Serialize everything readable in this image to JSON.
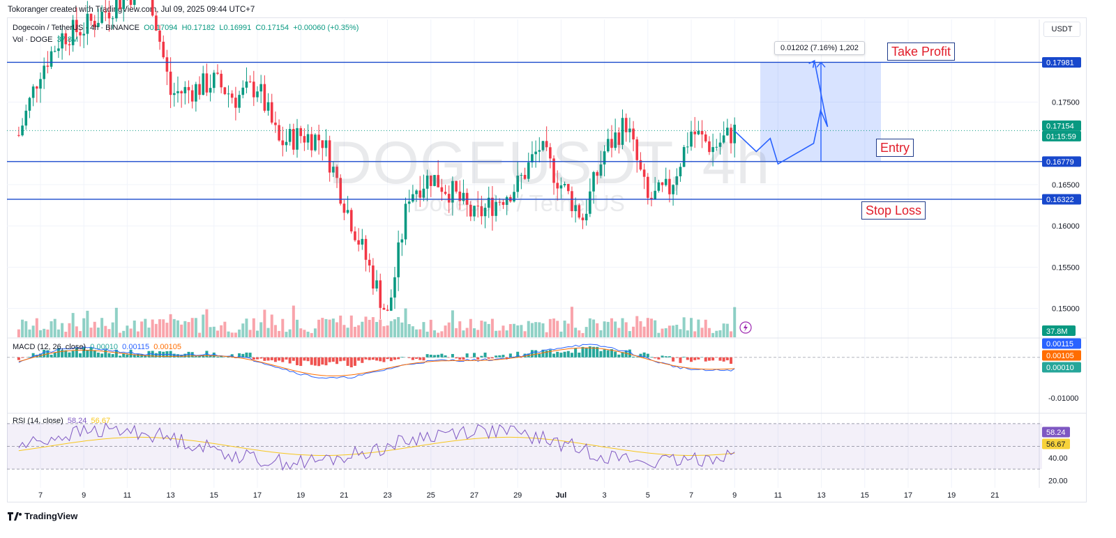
{
  "header": {
    "text": "Tokoranger created with TradingView.com, Jul 09, 2025 09:44 UTC+7"
  },
  "legend": {
    "symbol": "Dogecoin / TetherUS · 4h · BINANCE",
    "o": "O0.17094",
    "h": "H0.17182",
    "l": "L0.16991",
    "c": "C0.17154",
    "chg": "+0.00060 (+0.35%)",
    "vol_label": "Vol · DOGE",
    "vol_value": "37.8M",
    "macd_label": "MACD (12, 26, close)",
    "macd_hist": "0.00010",
    "macd_line": "0.00115",
    "macd_signal": "0.00105",
    "rsi_label": "RSI (14, close)",
    "rsi_value": "58.24",
    "rsi_ma": "56.67"
  },
  "currency": "USDT",
  "watermark": {
    "symbol": "DOGEUSDT, 4h",
    "name": "Dogecoin / TetherUS"
  },
  "annotations": {
    "take_profit": "Take Profit",
    "entry": "Entry",
    "stop_loss": "Stop Loss",
    "measure": "0.01202 (7.16%) 1,202"
  },
  "price_scale": [
    "0.17500",
    "0.16500",
    "0.16000",
    "0.15500",
    "0.15000"
  ],
  "price_badges": [
    {
      "text": "0.17981",
      "color": "#1848cc"
    },
    {
      "text": "0.17154",
      "color": "#089981"
    },
    {
      "text": "01:15:59",
      "color": "#089981"
    },
    {
      "text": "0.16779",
      "color": "#1848cc"
    },
    {
      "text": "0.16322",
      "color": "#1848cc"
    }
  ],
  "vol_badge": {
    "text": "37.8M",
    "color": "#089981"
  },
  "macd_scale": [
    "-0.01000"
  ],
  "macd_badges": [
    {
      "text": "0.00115",
      "color": "#2962ff"
    },
    {
      "text": "0.00105",
      "color": "#ff6d00"
    },
    {
      "text": "0.00010",
      "color": "#26a69a"
    }
  ],
  "rsi_scale": [
    "40.00",
    "20.00"
  ],
  "rsi_badges": [
    {
      "text": "58.24",
      "color": "#7e57c2"
    },
    {
      "text": "56.67",
      "color": "#f7d23a"
    }
  ],
  "time_axis": [
    "7",
    "9",
    "11",
    "13",
    "15",
    "17",
    "19",
    "21",
    "23",
    "25",
    "27",
    "29",
    "Jul",
    "3",
    "5",
    "7",
    "9",
    "11",
    "13",
    "15",
    "17",
    "19",
    "21"
  ],
  "footer": {
    "brand": "TradingView"
  },
  "chart_data": {
    "type": "candlestick",
    "title": "Dogecoin / TetherUS · 4h · BINANCE",
    "interval": "4h",
    "ylim": [
      0.1465,
      0.185
    ],
    "levels": [
      {
        "name": "Take Profit",
        "value": 0.17981
      },
      {
        "name": "Entry",
        "value": 0.16779
      },
      {
        "name": "Stop Loss",
        "value": 0.16322
      }
    ],
    "last": {
      "open": 0.17094,
      "high": 0.17182,
      "low": 0.16991,
      "close": 0.17154,
      "change": 0.0006,
      "change_pct": 0.35
    },
    "projection_range": {
      "from": 0.16779,
      "to": 0.17981,
      "diff": 0.01202,
      "pct": 7.16
    },
    "anchors": [
      {
        "date": "Jun 6",
        "close": 0.171
      },
      {
        "date": "Jun 7",
        "close": 0.179
      },
      {
        "date": "Jun 8",
        "close": 0.183
      },
      {
        "date": "Jun 9",
        "close": 0.184
      },
      {
        "date": "Jun 10",
        "close": 0.186
      },
      {
        "date": "Jun 11",
        "close": 0.188
      },
      {
        "date": "Jun 12",
        "close": 0.189
      },
      {
        "date": "Jun 13",
        "close": 0.176
      },
      {
        "date": "Jun 14",
        "close": 0.1765
      },
      {
        "date": "Jun 15",
        "close": 0.1775
      },
      {
        "date": "Jun 16",
        "close": 0.1755
      },
      {
        "date": "Jun 17",
        "close": 0.177
      },
      {
        "date": "Jun 18",
        "close": 0.17
      },
      {
        "date": "Jun 19",
        "close": 0.171
      },
      {
        "date": "Jun 20",
        "close": 0.1705
      },
      {
        "date": "Jun 21",
        "close": 0.163
      },
      {
        "date": "Jun 22",
        "close": 0.156
      },
      {
        "date": "Jun 23",
        "close": 0.149
      },
      {
        "date": "Jun 24",
        "close": 0.164
      },
      {
        "date": "Jun 25",
        "close": 0.166
      },
      {
        "date": "Jun 26",
        "close": 0.164
      },
      {
        "date": "Jun 27",
        "close": 0.161
      },
      {
        "date": "Jun 28",
        "close": 0.163
      },
      {
        "date": "Jun 29",
        "close": 0.165
      },
      {
        "date": "Jun 30",
        "close": 0.1695
      },
      {
        "date": "Jul 1",
        "close": 0.165
      },
      {
        "date": "Jul 2",
        "close": 0.161
      },
      {
        "date": "Jul 3",
        "close": 0.169
      },
      {
        "date": "Jul 4",
        "close": 0.1725
      },
      {
        "date": "Jul 5",
        "close": 0.163
      },
      {
        "date": "Jul 6",
        "close": 0.1645
      },
      {
        "date": "Jul 7",
        "close": 0.1715
      },
      {
        "date": "Jul 8",
        "close": 0.1695
      },
      {
        "date": "Jul 9",
        "close": 0.1715
      }
    ],
    "projected_path": [
      {
        "date": "Jul 9",
        "price": 0.1715
      },
      {
        "date": "Jul 10",
        "price": 0.169
      },
      {
        "date": "Jul 10",
        "price": 0.1706
      },
      {
        "date": "Jul 11",
        "price": 0.1675
      },
      {
        "date": "Jul 12",
        "price": 0.17
      },
      {
        "date": "Jul 12",
        "price": 0.174
      },
      {
        "date": "Jul 12",
        "price": 0.172
      },
      {
        "date": "Jul 13",
        "price": 0.18
      }
    ],
    "volume_ylim": [
      0,
      60
    ],
    "macd": {
      "hist": 0.0001,
      "macd": 0.00115,
      "signal": 0.00105,
      "ylim": [
        -0.0136,
        0.0046
      ]
    },
    "rsi": {
      "value": 58.24,
      "ma": 56.67,
      "ylim": [
        13.5,
        78.5
      ],
      "bands": [
        30,
        50,
        70
      ]
    }
  }
}
